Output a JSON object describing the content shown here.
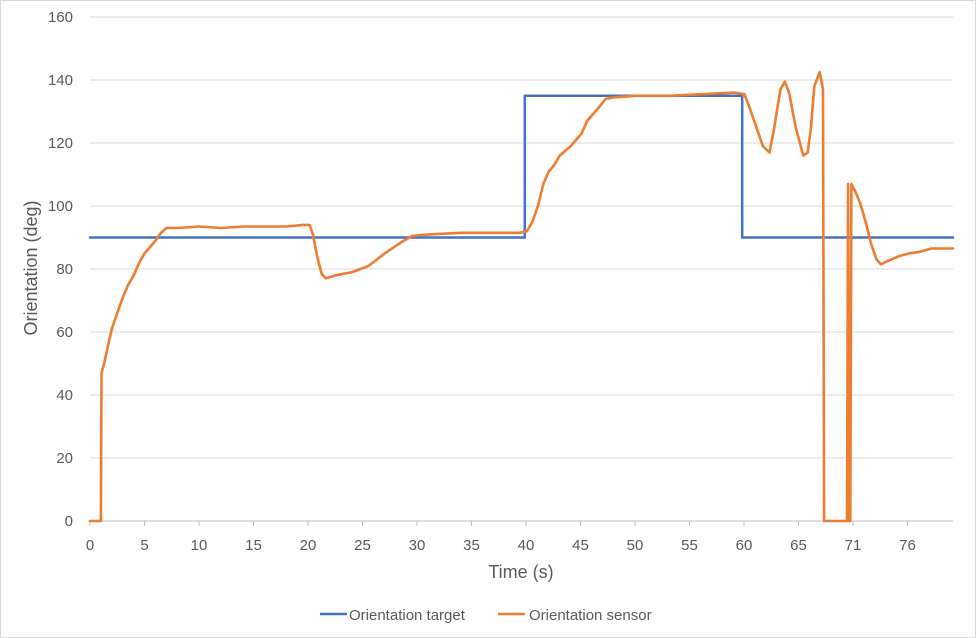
{
  "chart_data": {
    "type": "line",
    "title": "",
    "xlabel": "Time (s)",
    "ylabel": "Orientation (deg)",
    "xlim": [
      0,
      79
    ],
    "ylim": [
      0,
      160
    ],
    "x_ticks": [
      "0",
      "5",
      "10",
      "15",
      "20",
      "25",
      "30",
      "35",
      "40",
      "45",
      "50",
      "55",
      "60",
      "65",
      "71",
      "76"
    ],
    "y_ticks": [
      "0",
      "20",
      "40",
      "60",
      "80",
      "100",
      "120",
      "140",
      "160"
    ],
    "grid": "horizontal",
    "legend_position": "bottom",
    "series": [
      {
        "name": "Orientation target",
        "color": "#4472c4",
        "points": [
          [
            0,
            90
          ],
          [
            39.8,
            90
          ],
          [
            39.8,
            135
          ],
          [
            59.7,
            135
          ],
          [
            59.7,
            90
          ],
          [
            79,
            90
          ]
        ]
      },
      {
        "name": "Orientation sensor",
        "color": "#ed7d31",
        "points": [
          [
            0,
            0
          ],
          [
            1.0,
            0
          ],
          [
            1.05,
            47
          ],
          [
            1.3,
            50
          ],
          [
            1.6,
            55
          ],
          [
            2.0,
            61
          ],
          [
            2.5,
            66
          ],
          [
            3.0,
            71
          ],
          [
            3.5,
            75
          ],
          [
            4.0,
            78
          ],
          [
            4.5,
            82
          ],
          [
            5.0,
            85
          ],
          [
            5.5,
            87
          ],
          [
            6.0,
            89
          ],
          [
            6.5,
            91.5
          ],
          [
            7.0,
            93
          ],
          [
            8,
            93
          ],
          [
            10,
            93.5
          ],
          [
            12,
            93
          ],
          [
            14,
            93.5
          ],
          [
            16,
            93.5
          ],
          [
            18,
            93.5
          ],
          [
            19.5,
            94
          ],
          [
            20.1,
            94
          ],
          [
            20.4,
            91
          ],
          [
            20.8,
            84
          ],
          [
            21.2,
            78.5
          ],
          [
            21.6,
            77
          ],
          [
            22.5,
            78
          ],
          [
            24,
            79
          ],
          [
            25.5,
            81
          ],
          [
            27,
            85
          ],
          [
            28.5,
            88.5
          ],
          [
            29.5,
            90.5
          ],
          [
            31,
            91
          ],
          [
            34,
            91.5
          ],
          [
            37,
            91.5
          ],
          [
            39.3,
            91.5
          ],
          [
            40,
            92
          ],
          [
            40.5,
            95
          ],
          [
            41,
            100
          ],
          [
            41.5,
            107
          ],
          [
            42,
            111
          ],
          [
            42.5,
            113
          ],
          [
            43,
            116
          ],
          [
            44,
            119
          ],
          [
            45,
            123
          ],
          [
            45.5,
            127
          ],
          [
            46.5,
            131
          ],
          [
            47.2,
            134
          ],
          [
            48,
            134.5
          ],
          [
            50,
            135
          ],
          [
            53,
            135
          ],
          [
            56,
            135.5
          ],
          [
            59,
            136
          ],
          [
            59.9,
            135.5
          ],
          [
            60.3,
            132
          ],
          [
            61,
            125
          ],
          [
            61.6,
            119
          ],
          [
            62.2,
            117
          ],
          [
            62.6,
            124
          ],
          [
            63.2,
            137
          ],
          [
            63.6,
            139.5
          ],
          [
            64,
            136
          ],
          [
            64.6,
            125
          ],
          [
            65.3,
            116
          ],
          [
            65.7,
            117
          ],
          [
            66.0,
            125
          ],
          [
            66.3,
            138
          ],
          [
            66.8,
            142.5
          ],
          [
            67.1,
            137
          ],
          [
            67.2,
            0
          ],
          [
            69.3,
            0
          ],
          [
            69.4,
            107
          ],
          [
            69.5,
            0
          ],
          [
            69.6,
            0
          ],
          [
            69.7,
            107
          ],
          [
            70,
            105
          ],
          [
            70.5,
            101
          ],
          [
            71,
            95
          ],
          [
            71.5,
            88
          ],
          [
            72,
            83
          ],
          [
            72.4,
            81.5
          ],
          [
            73,
            82.5
          ],
          [
            74,
            84
          ],
          [
            75,
            85
          ],
          [
            76,
            85.5
          ],
          [
            77,
            86.5
          ],
          [
            78,
            86.5
          ],
          [
            79,
            86.5
          ]
        ]
      }
    ]
  }
}
